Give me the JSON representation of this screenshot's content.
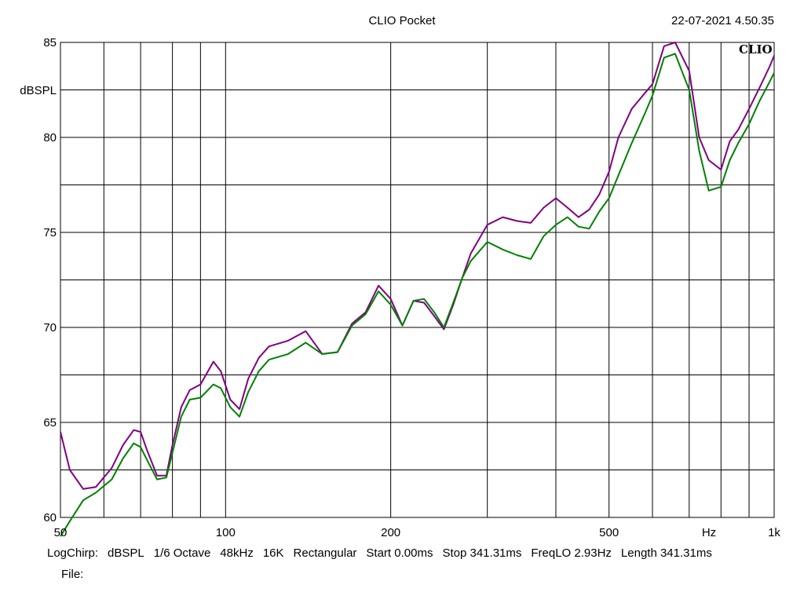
{
  "header": {
    "title": "CLIO Pocket",
    "timestamp": "22-07-2021 4.50.35",
    "logo": "CLIO"
  },
  "chart_data": {
    "type": "line",
    "ylabel": "dBSPL",
    "xlabel": "Hz",
    "x_scale": "log",
    "xlim": [
      50,
      1000
    ],
    "ylim": [
      60,
      85
    ],
    "x_ticks": [
      {
        "value": 50,
        "label": "50"
      },
      {
        "value": 100,
        "label": "100"
      },
      {
        "value": 200,
        "label": "200"
      },
      {
        "value": 500,
        "label": "500"
      },
      {
        "value": 1000,
        "label": "1k"
      }
    ],
    "y_ticks": [
      {
        "value": 60,
        "label": "60"
      },
      {
        "value": 65,
        "label": "65"
      },
      {
        "value": 70,
        "label": "70"
      },
      {
        "value": 75,
        "label": "75"
      },
      {
        "value": 80,
        "label": "80"
      },
      {
        "value": 85,
        "label": "85"
      }
    ],
    "x_grid": [
      50,
      60,
      70,
      80,
      90,
      100,
      200,
      300,
      400,
      500,
      600,
      700,
      800,
      900,
      1000
    ],
    "y_grid": [
      60,
      62.5,
      65,
      67.5,
      70,
      72.5,
      75,
      77.5,
      80,
      82.5,
      85
    ],
    "grid": true,
    "series": [
      {
        "color": "#800080",
        "x": [
          50,
          52,
          55,
          58,
          62,
          65,
          68,
          70,
          72,
          75,
          78,
          80,
          83,
          86,
          90,
          95,
          98,
          102,
          106,
          110,
          115,
          120,
          130,
          140,
          150,
          160,
          170,
          180,
          190,
          200,
          210,
          220,
          230,
          240,
          250,
          260,
          270,
          280,
          300,
          320,
          340,
          360,
          380,
          400,
          420,
          440,
          460,
          480,
          500,
          520,
          550,
          580,
          600,
          630,
          660,
          700,
          730,
          760,
          800,
          830,
          860,
          900,
          940,
          980,
          1000
        ],
        "values": [
          64.5,
          62.5,
          61.5,
          61.6,
          62.6,
          63.8,
          64.6,
          64.5,
          63.5,
          62.2,
          62.2,
          63.8,
          65.8,
          66.7,
          67.0,
          68.2,
          67.7,
          66.2,
          65.7,
          67.3,
          68.4,
          69.0,
          69.3,
          69.8,
          68.6,
          68.7,
          70.2,
          70.8,
          72.2,
          71.5,
          70.1,
          71.4,
          71.3,
          70.6,
          69.9,
          71.2,
          72.6,
          73.9,
          75.4,
          75.8,
          75.6,
          75.5,
          76.3,
          76.8,
          76.3,
          75.8,
          76.2,
          77.0,
          78.2,
          80.0,
          81.5,
          82.3,
          82.8,
          84.8,
          85.0,
          83.5,
          80.0,
          78.8,
          78.3,
          79.8,
          80.4,
          81.5,
          82.6,
          83.7,
          84.3
        ]
      },
      {
        "color": "#008000",
        "x": [
          50,
          52,
          55,
          58,
          62,
          65,
          68,
          70,
          72,
          75,
          78,
          80,
          83,
          86,
          90,
          95,
          98,
          102,
          106,
          110,
          115,
          120,
          130,
          140,
          150,
          160,
          170,
          180,
          190,
          200,
          210,
          220,
          230,
          240,
          250,
          260,
          270,
          280,
          300,
          320,
          340,
          360,
          380,
          400,
          420,
          440,
          460,
          480,
          500,
          520,
          550,
          580,
          600,
          630,
          660,
          700,
          730,
          760,
          800,
          830,
          860,
          900,
          940,
          980,
          1000
        ],
        "values": [
          59.0,
          59.8,
          60.9,
          61.3,
          62.0,
          63.1,
          63.9,
          63.7,
          63.0,
          62.0,
          62.1,
          63.4,
          65.3,
          66.2,
          66.3,
          67.0,
          66.8,
          65.8,
          65.3,
          66.6,
          67.7,
          68.3,
          68.6,
          69.2,
          68.6,
          68.7,
          70.1,
          70.7,
          71.9,
          71.2,
          70.1,
          71.4,
          71.5,
          70.8,
          70.0,
          71.3,
          72.6,
          73.5,
          74.5,
          74.1,
          73.8,
          73.6,
          74.8,
          75.4,
          75.8,
          75.3,
          75.2,
          76.1,
          76.8,
          78.0,
          79.7,
          81.2,
          82.2,
          84.2,
          84.4,
          82.5,
          79.3,
          77.2,
          77.4,
          78.8,
          79.7,
          80.7,
          81.9,
          82.9,
          83.4
        ]
      }
    ]
  }
}
